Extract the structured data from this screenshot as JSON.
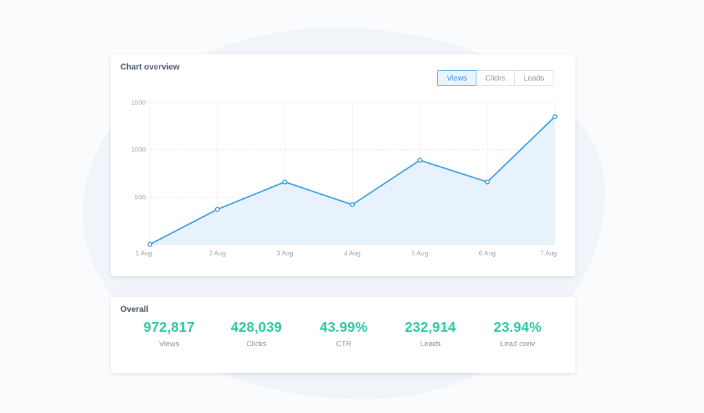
{
  "chart_card": {
    "title": "Chart overview",
    "tabs": [
      {
        "label": "Views",
        "active": true
      },
      {
        "label": "Clicks",
        "active": false
      },
      {
        "label": "Leads",
        "active": false
      }
    ]
  },
  "chart_data": {
    "type": "area",
    "categories": [
      "1 Aug",
      "2 Aug",
      "3 Aug",
      "4 Aug",
      "5 Aug",
      "6 Aug",
      "7 Aug"
    ],
    "series": [
      {
        "values": [
          0,
          370,
          660,
          420,
          890,
          660,
          1350
        ]
      }
    ],
    "y_ticks": [
      500,
      1000,
      1500
    ],
    "ylim": [
      0,
      1500
    ],
    "grid": true,
    "line_color": "#3a9ee4",
    "fill_color": "#e8f2fc"
  },
  "overall_card": {
    "title": "Overall",
    "stats": [
      {
        "value": "972,817",
        "label": "Views"
      },
      {
        "value": "428,039",
        "label": "Clicks"
      },
      {
        "value": "43.99%",
        "label": "CTR"
      },
      {
        "value": "232,914",
        "label": "Leads"
      },
      {
        "value": "23.94%",
        "label": "Lead conv"
      }
    ]
  },
  "colors": {
    "accent": "#3a9ee4",
    "stat_value": "#27c8a4"
  }
}
